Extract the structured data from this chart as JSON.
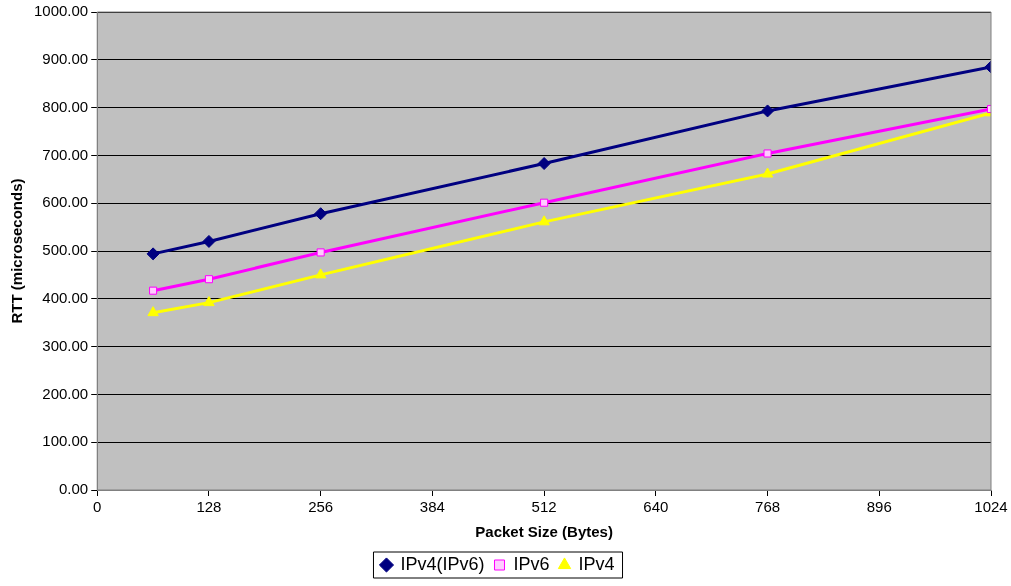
{
  "chart_data": {
    "type": "line",
    "xlabel": "Packet Size (Bytes)",
    "ylabel": "RTT (microseconds)",
    "x": [
      64,
      128,
      256,
      512,
      768,
      1024
    ],
    "series": [
      {
        "name": "IPv4(IPv6)",
        "color": "#000080",
        "marker": "diamond",
        "values": [
          494,
          520,
          578,
          683,
          793,
          885
        ]
      },
      {
        "name": "IPv6",
        "color": "#ff00ff",
        "marker": "square",
        "values": [
          417,
          441,
          497,
          601,
          704,
          797
        ]
      },
      {
        "name": "IPv4",
        "color": "#ffff00",
        "marker": "triangle",
        "values": [
          371,
          392,
          450,
          561,
          661,
          789
        ]
      }
    ],
    "xlim": [
      0,
      1024
    ],
    "xticks": [
      0,
      128,
      256,
      384,
      512,
      640,
      768,
      896,
      1024
    ],
    "ylim": [
      0,
      1000
    ],
    "yticks": [
      {
        "value": 0,
        "label": "0.00"
      },
      {
        "value": 100,
        "label": "100.00"
      },
      {
        "value": 200,
        "label": "200.00"
      },
      {
        "value": 300,
        "label": "300.00"
      },
      {
        "value": 400,
        "label": "400.00"
      },
      {
        "value": 500,
        "label": "500.00"
      },
      {
        "value": 600,
        "label": "600.00"
      },
      {
        "value": 700,
        "label": "700.00"
      },
      {
        "value": 800,
        "label": "800.00"
      },
      {
        "value": 900,
        "label": "900.00"
      },
      {
        "value": 1000,
        "label": "1000.00"
      }
    ],
    "grid": "y",
    "legend": "bottom",
    "line_style": "solid"
  }
}
